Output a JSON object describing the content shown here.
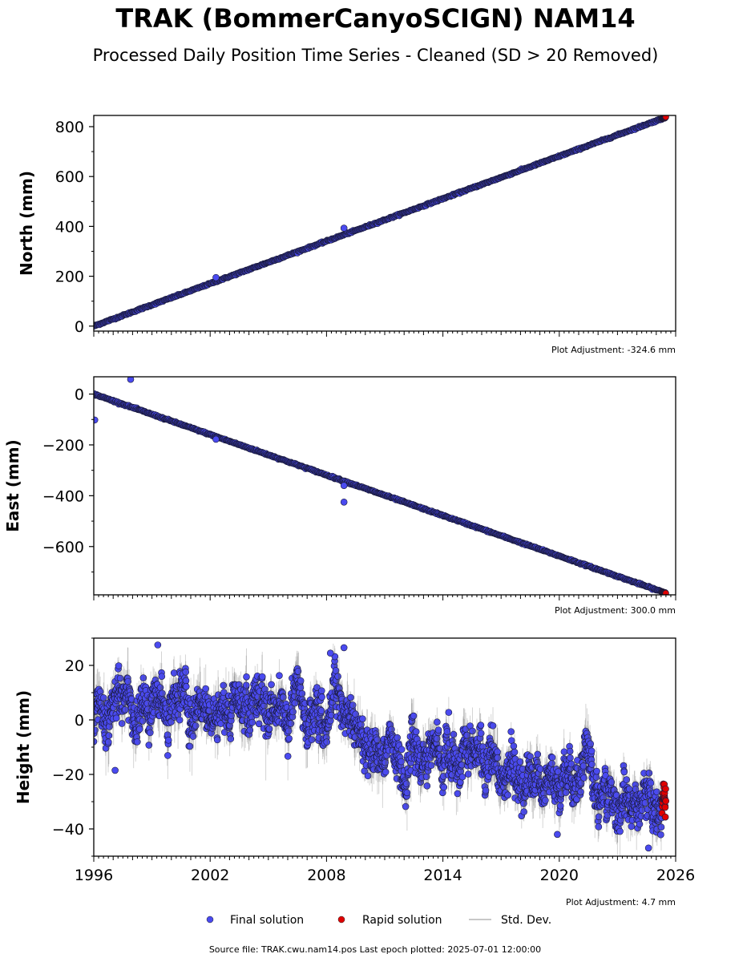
{
  "header": {
    "title": "TRAK (BommerCanyoSCIGN) NAM14",
    "subtitle": "Processed Daily Position Time Series - Cleaned (SD > 20 Removed)"
  },
  "chart_data": [
    {
      "type": "scatter",
      "panel": "north",
      "ylabel": "North (mm)",
      "xlim": [
        1996.0,
        2026.0
      ],
      "ylim": [
        -20,
        845
      ],
      "yticks": [
        0,
        200,
        400,
        600,
        800
      ],
      "adjustment": "Plot Adjustment: -324.6 mm",
      "series": [
        {
          "name": "Final solution",
          "color": "#4a4af0",
          "x_range": [
            1996.0,
            2025.3
          ],
          "trend": [
            [
              1996.0,
              0
            ],
            [
              2025.3,
              832
            ]
          ],
          "noise": 1.5
        },
        {
          "name": "Rapid solution",
          "color": "#e00000",
          "x_range": [
            2025.3,
            2025.5
          ],
          "trend": [
            [
              2025.3,
              832
            ],
            [
              2025.5,
              838
            ]
          ],
          "noise": 1
        }
      ],
      "outliers": [
        {
          "x": 2008.9,
          "y": 393
        },
        {
          "x": 2002.3,
          "y": 195
        }
      ]
    },
    {
      "type": "scatter",
      "panel": "east",
      "ylabel": "East (mm)",
      "xlim": [
        1996.0,
        2026.0
      ],
      "ylim": [
        -790,
        68
      ],
      "yticks": [
        0,
        -200,
        -400,
        -600
      ],
      "adjustment": "Plot Adjustment: 300.0 mm",
      "series": [
        {
          "name": "Final solution",
          "color": "#4a4af0",
          "x_range": [
            1996.0,
            2025.3
          ],
          "trend": [
            [
              1996.0,
              0
            ],
            [
              2025.3,
              -778
            ]
          ],
          "noise": 1.5
        },
        {
          "name": "Rapid solution",
          "color": "#e00000",
          "x_range": [
            2025.3,
            2025.5
          ],
          "trend": [
            [
              2025.3,
              -778
            ],
            [
              2025.5,
              -783
            ]
          ],
          "noise": 1
        }
      ],
      "outliers": [
        {
          "x": 1996.05,
          "y": -102
        },
        {
          "x": 1997.9,
          "y": 58
        },
        {
          "x": 2008.9,
          "y": -425
        },
        {
          "x": 2008.9,
          "y": -360
        },
        {
          "x": 2002.3,
          "y": -178
        }
      ]
    },
    {
      "type": "scatter",
      "panel": "height",
      "ylabel": "Height (mm)",
      "xlim": [
        1996.0,
        2026.0
      ],
      "ylim": [
        -50,
        30
      ],
      "yticks": [
        20,
        0,
        -20,
        -40
      ],
      "xticks": [
        1996,
        2002,
        2008,
        2014,
        2020,
        2026
      ],
      "adjustment": "Plot Adjustment: 4.7 mm",
      "series": [
        {
          "name": "Final solution",
          "color": "#4a4af0",
          "x_range": [
            1996.0,
            2025.3
          ],
          "trend": [
            [
              1996.0,
              6
            ],
            [
              2009.0,
              4
            ],
            [
              2010.5,
              -12
            ],
            [
              2016.0,
              -15
            ],
            [
              2018.0,
              -20
            ],
            [
              2025.3,
              -30
            ]
          ],
          "noise": 6
        },
        {
          "name": "Rapid solution",
          "color": "#e00000",
          "x_range": [
            2025.3,
            2025.5
          ],
          "trend": [
            [
              2025.3,
              -32
            ],
            [
              2025.5,
              -31
            ]
          ],
          "noise": 3
        }
      ],
      "outliers": [
        {
          "x": 1999.3,
          "y": 27.5
        },
        {
          "x": 2008.9,
          "y": 26.5
        },
        {
          "x": 2008.2,
          "y": 24.5
        },
        {
          "x": 2019.9,
          "y": -42
        },
        {
          "x": 2024.6,
          "y": -47
        },
        {
          "x": 1997.1,
          "y": -18.5
        }
      ]
    }
  ],
  "legend": {
    "final": "Final solution",
    "rapid": "Rapid solution",
    "std": "Std. Dev.",
    "final_color": "#4a4af0",
    "rapid_color": "#e00000",
    "std_color": "#c8c8c8"
  },
  "footer": {
    "source": "Source file: TRAK.cwu.nam14.pos  Last epoch plotted: 2025-07-01 12:00:00"
  }
}
